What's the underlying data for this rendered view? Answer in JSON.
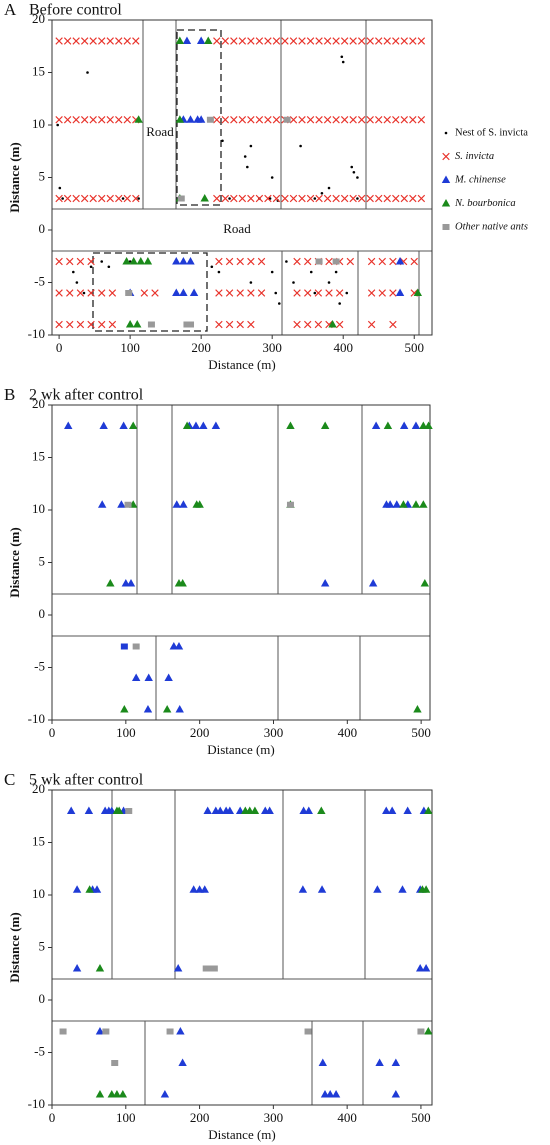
{
  "chart_data": [
    {
      "type": "scatter",
      "panel": "A",
      "title": "Before control",
      "x_label": "Distance (m)",
      "y_label": "Distance (m)",
      "xlim": [
        -10,
        525
      ],
      "ylim": [
        -10,
        20
      ],
      "xticks": [
        0,
        100,
        200,
        300,
        400,
        500
      ],
      "yticks": [
        -10,
        -5,
        0,
        5,
        10,
        15,
        20
      ],
      "legend": "right",
      "annotations": [
        "Road",
        "Road"
      ],
      "series": [
        {
          "name": "Nest of S. invicta",
          "color": "#000000",
          "marker": "dot",
          "x": [
            40,
            -2,
            1,
            5,
            90,
            112,
            230,
            240,
            265,
            262,
            270,
            282,
            297,
            300,
            308,
            340,
            360,
            370,
            380,
            398,
            400,
            412,
            415,
            420,
            420,
            20,
            25,
            35,
            45,
            60,
            70,
            100,
            215,
            225,
            270,
            300,
            305,
            310,
            320,
            330,
            355,
            360,
            380,
            390,
            395,
            405
          ],
          "y": [
            15,
            10,
            4,
            3,
            3,
            3,
            8.5,
            3,
            6,
            7,
            8,
            3,
            3,
            5,
            2.8,
            8,
            3,
            3.5,
            4,
            16.5,
            16,
            6,
            5.5,
            5,
            3,
            -4,
            -5,
            -6,
            -3.5,
            -3,
            -3.5,
            -3,
            -3.5,
            -4,
            -5,
            -4,
            -6,
            -7,
            -3,
            -5,
            -4,
            -6,
            -5,
            -4,
            -7,
            -6
          ]
        },
        {
          "name": "S. invicta",
          "color": "#e8322a",
          "marker": "x",
          "x": [
            0,
            12,
            24,
            36,
            48,
            60,
            72,
            84,
            96,
            108,
            222,
            234,
            246,
            258,
            270,
            282,
            294,
            306,
            318,
            330,
            342,
            354,
            366,
            378,
            390,
            402,
            414,
            426,
            438,
            450,
            462,
            474,
            486,
            498,
            510,
            0,
            12,
            24,
            36,
            48,
            60,
            72,
            84,
            96,
            108,
            222,
            234,
            246,
            258,
            270,
            282,
            294,
            306,
            318,
            330,
            342,
            354,
            366,
            378,
            390,
            402,
            414,
            426,
            438,
            450,
            462,
            474,
            486,
            498,
            510,
            0,
            12,
            24,
            36,
            48,
            60,
            72,
            84,
            96,
            108,
            222,
            234,
            246,
            258,
            270,
            282,
            294,
            306,
            318,
            330,
            342,
            354,
            366,
            378,
            390,
            402,
            414,
            426,
            438,
            450,
            462,
            474,
            486,
            498,
            510,
            0,
            15,
            30,
            45,
            225,
            240,
            255,
            270,
            285,
            335,
            350,
            365,
            380,
            395,
            410,
            440,
            455,
            470,
            485,
            500,
            0,
            15,
            30,
            45,
            60,
            75,
            120,
            135,
            225,
            240,
            255,
            270,
            285,
            335,
            350,
            365,
            380,
            395,
            440,
            455,
            470,
            500,
            0,
            15,
            30,
            45,
            60,
            75,
            225,
            240,
            255,
            270,
            335,
            350,
            365,
            380,
            395,
            440,
            470
          ],
          "y": [
            18,
            18,
            18,
            18,
            18,
            18,
            18,
            18,
            18,
            18,
            18,
            18,
            18,
            18,
            18,
            18,
            18,
            18,
            18,
            18,
            18,
            18,
            18,
            18,
            18,
            18,
            18,
            18,
            18,
            18,
            18,
            18,
            18,
            18,
            18,
            10.5,
            10.5,
            10.5,
            10.5,
            10.5,
            10.5,
            10.5,
            10.5,
            10.5,
            10.5,
            10.5,
            10.5,
            10.5,
            10.5,
            10.5,
            10.5,
            10.5,
            10.5,
            10.5,
            10.5,
            10.5,
            10.5,
            10.5,
            10.5,
            10.5,
            10.5,
            10.5,
            10.5,
            10.5,
            10.5,
            10.5,
            10.5,
            10.5,
            10.5,
            10.5,
            3,
            3,
            3,
            3,
            3,
            3,
            3,
            3,
            3,
            3,
            3,
            3,
            3,
            3,
            3,
            3,
            3,
            3,
            3,
            3,
            3,
            3,
            3,
            3,
            3,
            3,
            3,
            3,
            3,
            3,
            3,
            3,
            3,
            3,
            3,
            -3,
            -3,
            -3,
            -3,
            -3,
            -3,
            -3,
            -3,
            -3,
            -3,
            -3,
            -3,
            -3,
            -3,
            -3,
            -3,
            -3,
            -3,
            -3,
            -3,
            -6,
            -6,
            -6,
            -6,
            -6,
            -6,
            -6,
            -6,
            -6,
            -6,
            -6,
            -6,
            -6,
            -6,
            -6,
            -6,
            -6,
            -6,
            -6,
            -6,
            -6,
            -6,
            -9,
            -9,
            -9,
            -9,
            -9,
            -9,
            -9,
            -9,
            -9,
            -9,
            -9,
            -9,
            -9,
            -9,
            -9,
            -9,
            -9
          ]
        },
        {
          "name": "M. chinense",
          "color": "#1f3bd6",
          "marker": "triangle",
          "x": [
            180,
            200,
            175,
            185,
            195,
            200,
            165,
            175,
            185,
            480,
            100,
            165,
            175,
            190,
            480
          ],
          "y": [
            18,
            18,
            10.5,
            10.5,
            10.5,
            10.5,
            -3,
            -3,
            -3,
            -3,
            -6,
            -6,
            -6,
            -6,
            -6
          ]
        },
        {
          "name": "N. bourbonica",
          "color": "#1b8a1b",
          "marker": "triangle",
          "x": [
            170,
            210,
            112,
            170,
            170,
            205,
            95,
            105,
            115,
            125,
            100,
            110,
            385,
            505
          ],
          "y": [
            18,
            18,
            10.5,
            10.5,
            3,
            3,
            -3,
            -3,
            -3,
            -3,
            -9,
            -9,
            -9,
            -6
          ]
        },
        {
          "name": "Other native ants",
          "color": "#999999",
          "marker": "square",
          "x": [
            213,
            321,
            172,
            366,
            390,
            98,
            130,
            180,
            185
          ],
          "y": [
            10.5,
            10.5,
            3,
            -3,
            -3,
            -6,
            -9,
            -9,
            -9
          ]
        }
      ]
    },
    {
      "type": "scatter",
      "panel": "B",
      "title": "2 wk after control",
      "x_label": "Distance (m)",
      "y_label": "Distance (m)",
      "xlim": [
        0,
        512
      ],
      "ylim": [
        -10,
        20
      ],
      "xticks": [
        0,
        100,
        200,
        300,
        400,
        500
      ],
      "yticks": [
        -10,
        -5,
        0,
        5,
        10,
        15,
        20
      ],
      "series": [
        {
          "color": "#1f3bd6",
          "marker": "triangle",
          "x": [
            22,
            70,
            97,
            186,
            195,
            205,
            222,
            439,
            477,
            493,
            68,
            94,
            169,
            178,
            453,
            458,
            467,
            482,
            100,
            107,
            370,
            435,
            165,
            172,
            114,
            131,
            158,
            130,
            173
          ],
          "y": [
            18,
            18,
            18,
            18,
            18,
            18,
            18,
            18,
            18,
            18,
            10.5,
            10.5,
            10.5,
            10.5,
            10.5,
            10.5,
            10.5,
            10.5,
            3,
            3,
            3,
            3,
            -3,
            -3,
            -6,
            -6,
            -6,
            -9,
            -9
          ]
        },
        {
          "color": "#1b8a1b",
          "marker": "triangle",
          "x": [
            110,
            183,
            323,
            370,
            455,
            503,
            510,
            110,
            196,
            200,
            323,
            476,
            493,
            503,
            79,
            172,
            177,
            505,
            98,
            156,
            495
          ],
          "y": [
            18,
            18,
            18,
            18,
            18,
            18,
            18,
            10.5,
            10.5,
            10.5,
            10.5,
            10.5,
            10.5,
            10.5,
            3,
            3,
            3,
            3,
            -9,
            -9,
            -9
          ]
        },
        {
          "color": "#999999",
          "marker": "square",
          "x": [
            103,
            323,
            114
          ],
          "y": [
            10.5,
            10.5,
            -3
          ]
        },
        {
          "color": "#1f3bd6",
          "marker": "square",
          "x": [
            98
          ],
          "y": [
            -3
          ]
        }
      ]
    },
    {
      "type": "scatter",
      "panel": "C",
      "title": "5 wk after control",
      "x_label": "Distance (m)",
      "y_label": "Distance (m)",
      "xlim": [
        0,
        515
      ],
      "ylim": [
        -10,
        20
      ],
      "xticks": [
        0,
        100,
        200,
        300,
        400,
        500
      ],
      "yticks": [
        -10,
        -5,
        0,
        5,
        10,
        15,
        20
      ],
      "series": [
        {
          "color": "#1f3bd6",
          "marker": "triangle",
          "x": [
            26,
            50,
            72,
            77,
            81,
            97,
            211,
            222,
            228,
            236,
            241,
            255,
            289,
            295,
            341,
            348,
            453,
            461,
            482,
            504,
            34,
            55,
            61,
            192,
            200,
            207,
            340,
            366,
            441,
            475,
            499,
            34,
            171,
            499,
            507,
            65,
            174,
            177,
            367,
            444,
            466,
            153,
            370,
            377,
            385,
            466
          ],
          "y": [
            18,
            18,
            18,
            18,
            18,
            18,
            18,
            18,
            18,
            18,
            18,
            18,
            18,
            18,
            18,
            18,
            18,
            18,
            18,
            18,
            10.5,
            10.5,
            10.5,
            10.5,
            10.5,
            10.5,
            10.5,
            10.5,
            10.5,
            10.5,
            10.5,
            3,
            3,
            3,
            3,
            -3,
            -3,
            -6,
            -6,
            -6,
            -6,
            -9,
            -9,
            -9,
            -9,
            -9
          ]
        },
        {
          "color": "#1b8a1b",
          "marker": "triangle",
          "x": [
            88,
            91,
            262,
            268,
            275,
            365,
            510,
            51,
            502,
            507,
            65,
            510,
            65,
            81,
            88,
            96
          ],
          "y": [
            18,
            18,
            18,
            18,
            18,
            18,
            18,
            10.5,
            10.5,
            10.5,
            3,
            -3,
            -9,
            -9,
            -9,
            -9
          ]
        },
        {
          "color": "#999999",
          "marker": "square",
          "x": [
            104,
            209,
            214,
            220,
            15,
            73,
            160,
            347,
            500,
            85
          ],
          "y": [
            18,
            3,
            3,
            3,
            -3,
            -3,
            -3,
            -3,
            -3,
            -6
          ]
        }
      ]
    }
  ]
}
